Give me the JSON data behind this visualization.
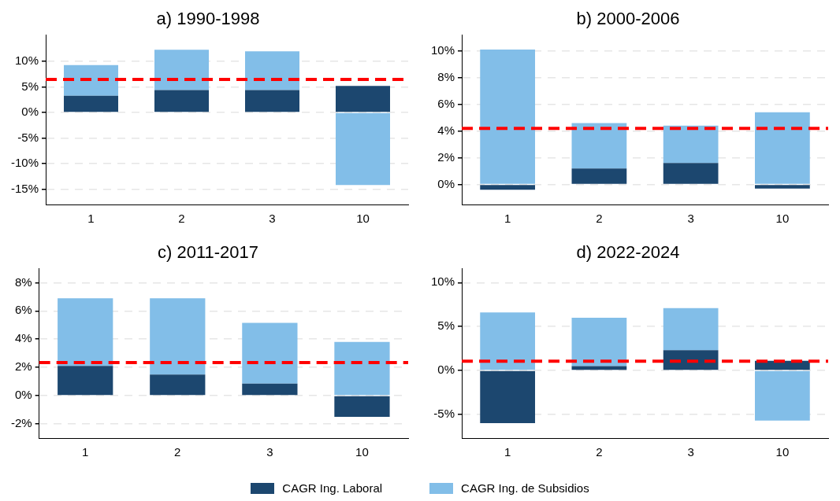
{
  "chart_data": [
    {
      "type": "bar",
      "title": "a) 1990-1998",
      "stacked": true,
      "categories": [
        "1",
        "2",
        "3",
        "10"
      ],
      "legend": "bottom",
      "series": [
        {
          "name": "CAGR Ing. Laboral",
          "color": "#1c476f",
          "values": [
            3.3,
            4.4,
            4.4,
            5.2
          ]
        },
        {
          "name": "CAGR Ing. de Subsidios",
          "color": "#82bee8",
          "values": [
            6.0,
            7.9,
            7.6,
            -14.2
          ]
        }
      ],
      "ylim": [
        -18,
        15.2
      ],
      "yticks": [
        {
          "value": -15,
          "label": "-15%"
        },
        {
          "value": -10,
          "label": "-10%"
        },
        {
          "value": -5,
          "label": "-5%"
        },
        {
          "value": 0,
          "label": "0%"
        },
        {
          "value": 5,
          "label": "5%"
        },
        {
          "value": 10,
          "label": "10%"
        }
      ],
      "grid": "y",
      "ref_lines": [
        {
          "axis": "y",
          "value": 6.5,
          "color": "#ff0000",
          "line_style": "dashed"
        }
      ]
    },
    {
      "type": "bar",
      "title": "b) 2000-2006",
      "stacked": true,
      "categories": [
        "1",
        "2",
        "3",
        "10"
      ],
      "series": [
        {
          "color": "#1c476f",
          "values": [
            -0.4,
            1.2,
            1.6,
            -0.3
          ]
        },
        {
          "color": "#82bee8",
          "values": [
            10.1,
            3.4,
            2.8,
            5.4
          ]
        }
      ],
      "ylim": [
        -1.5,
        11.2
      ],
      "yticks": [
        {
          "value": 0,
          "label": "0%"
        },
        {
          "value": 2,
          "label": "2%"
        },
        {
          "value": 4,
          "label": "4%"
        },
        {
          "value": 6,
          "label": "6%"
        },
        {
          "value": 8,
          "label": "8%"
        },
        {
          "value": 10,
          "label": "10%"
        }
      ],
      "grid": "y",
      "ref_lines": [
        {
          "axis": "y",
          "value": 4.2,
          "color": "#ff0000",
          "line_style": "dashed"
        }
      ]
    },
    {
      "type": "bar",
      "title": "c) 2011-2017",
      "stacked": true,
      "categories": [
        "1",
        "2",
        "3",
        "10"
      ],
      "series": [
        {
          "color": "#1c476f",
          "values": [
            2.1,
            1.5,
            0.85,
            -1.5
          ]
        },
        {
          "color": "#82bee8",
          "values": [
            4.8,
            5.4,
            4.3,
            3.8
          ]
        }
      ],
      "ylim": [
        -3,
        9
      ],
      "yticks": [
        {
          "value": -2,
          "label": "-2%"
        },
        {
          "value": 0,
          "label": "0%"
        },
        {
          "value": 2,
          "label": "2%"
        },
        {
          "value": 4,
          "label": "4%"
        },
        {
          "value": 6,
          "label": "6%"
        },
        {
          "value": 8,
          "label": "8%"
        }
      ],
      "grid": "y",
      "ref_lines": [
        {
          "axis": "y",
          "value": 2.35,
          "color": "#ff0000",
          "line_style": "dashed"
        }
      ]
    },
    {
      "type": "bar",
      "title": "d) 2022-2024",
      "stacked": true,
      "categories": [
        "1",
        "2",
        "3",
        "10"
      ],
      "series": [
        {
          "color": "#1c476f",
          "values": [
            -6.0,
            0.5,
            2.3,
            1.1
          ]
        },
        {
          "color": "#82bee8",
          "values": [
            6.6,
            5.5,
            4.8,
            -5.7
          ]
        }
      ],
      "ylim": [
        -7.7,
        11.6
      ],
      "yticks": [
        {
          "value": -5,
          "label": "-5%"
        },
        {
          "value": 0,
          "label": "0%"
        },
        {
          "value": 5,
          "label": "5%"
        },
        {
          "value": 10,
          "label": "10%"
        }
      ],
      "grid": "y",
      "ref_lines": [
        {
          "axis": "y",
          "value": 1.05,
          "color": "#ff0000",
          "line_style": "dashed"
        }
      ]
    }
  ]
}
